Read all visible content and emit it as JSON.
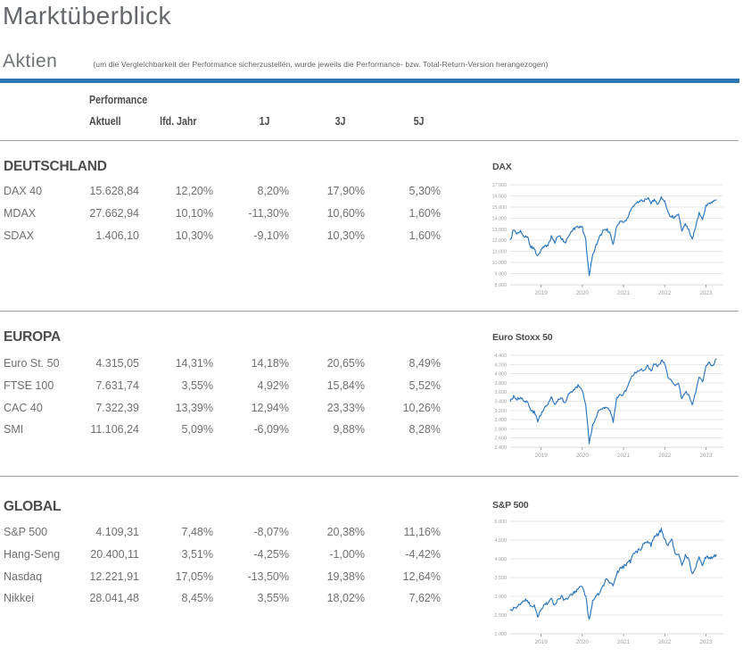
{
  "page": {
    "title": "Marktüberblick",
    "section": "Aktien",
    "note": "(um die Vergleichbarkeit der Performance sicherzustellen, wurde jeweils die Performance- bzw. Total-Return-Version herangezogen)"
  },
  "table": {
    "group_header": "Performance",
    "columns": [
      "Aktuell",
      "lfd. Jahr",
      "1J",
      "3J",
      "5J"
    ],
    "sections": [
      {
        "title": "DEUTSCHLAND",
        "rows": [
          {
            "label": "DAX 40",
            "values": [
              "15.628,84",
              "12,20%",
              "8,20%",
              "17,90%",
              "5,30%"
            ]
          },
          {
            "label": "MDAX",
            "values": [
              "27.662,94",
              "10,10%",
              "-11,30%",
              "10,60%",
              "1,60%"
            ]
          },
          {
            "label": "SDAX",
            "values": [
              "1.406,10",
              "10,30%",
              "-9,10%",
              "10,30%",
              "1,60%"
            ]
          }
        ]
      },
      {
        "title": "EUROPA",
        "rows": [
          {
            "label": "Euro St. 50",
            "values": [
              "4.315,05",
              "14,31%",
              "14,18%",
              "20,65%",
              "8,49%"
            ]
          },
          {
            "label": "FTSE 100",
            "values": [
              "7.631,74",
              "3,55%",
              "4,92%",
              "15,84%",
              "5,52%"
            ]
          },
          {
            "label": "CAC 40",
            "values": [
              "7.322,39",
              "13,39%",
              "12,94%",
              "23,33%",
              "10,26%"
            ]
          },
          {
            "label": "SMI",
            "values": [
              "11.106,24",
              "5,09%",
              "-6,09%",
              "9,88%",
              "8,28%"
            ]
          }
        ]
      },
      {
        "title": "GLOBAL",
        "rows": [
          {
            "label": "S&P 500",
            "values": [
              "4.109,31",
              "7,48%",
              "-8,07%",
              "20,38%",
              "11,16%"
            ]
          },
          {
            "label": "Hang-Seng",
            "values": [
              "20.400,11",
              "3,51%",
              "-4,25%",
              "-1,00%",
              "-4,42%"
            ]
          },
          {
            "label": "Nasdaq",
            "values": [
              "12.221,91",
              "17,05%",
              "-13,50%",
              "19,38%",
              "12,64%"
            ]
          },
          {
            "label": "Nikkei",
            "values": [
              "28.041,48",
              "8,45%",
              "3,55%",
              "18,02%",
              "7,62%"
            ]
          }
        ]
      }
    ]
  },
  "colors": {
    "accent_bar": "#2e75b6",
    "line": "#2a75bd",
    "grid": "#e7e7e7",
    "grid_bottom": "#d8d8d8",
    "axis_label": "#9e9ea0",
    "tick": "#8f8f8f",
    "heading_text": "#4b4c4e",
    "body_text": "#6d6f71"
  },
  "chart_data": [
    {
      "type": "line",
      "title": "DAX",
      "x_start_year": 2018.25,
      "x_step_months": 1,
      "x_axis_range": [
        2018.25,
        2023.38
      ],
      "x_ticks": [
        2019,
        2020,
        2021,
        2022,
        2023
      ],
      "y_min": 8000,
      "y_max": 17000,
      "y_step": 1000,
      "series": [
        {
          "name": "DAX",
          "values": [
            12100,
            12900,
            12650,
            12800,
            12400,
            12250,
            11450,
            11300,
            10500,
            11100,
            11450,
            11550,
            12300,
            11850,
            12350,
            12200,
            11700,
            12350,
            12850,
            13200,
            13250,
            13200,
            12000,
            8800,
            10700,
            11500,
            12350,
            12800,
            12950,
            12850,
            11600,
            13300,
            13700,
            13650,
            13900,
            14700,
            15150,
            15400,
            15600,
            15550,
            15900,
            15300,
            15650,
            15200,
            15850,
            15450,
            14500,
            14100,
            14050,
            14350,
            13000,
            13450,
            12950,
            12100,
            13200,
            14400,
            13950,
            15100,
            15350,
            15450,
            15630
          ]
        }
      ]
    },
    {
      "type": "line",
      "title": "Euro Stoxx 50",
      "x_start_year": 2018.25,
      "x_step_months": 1,
      "x_axis_range": [
        2018.25,
        2023.38
      ],
      "x_ticks": [
        2019,
        2020,
        2021,
        2022,
        2023
      ],
      "y_min": 2400,
      "y_max": 4400,
      "y_step": 200,
      "series": [
        {
          "name": "Euro Stoxx 50",
          "values": [
            3400,
            3520,
            3450,
            3480,
            3390,
            3400,
            3200,
            3170,
            2980,
            3120,
            3270,
            3350,
            3500,
            3320,
            3450,
            3470,
            3360,
            3550,
            3600,
            3700,
            3740,
            3650,
            3330,
            2500,
            2880,
            3040,
            3230,
            3250,
            3300,
            3200,
            2960,
            3470,
            3550,
            3560,
            3670,
            3900,
            3990,
            4040,
            4080,
            4060,
            4180,
            4050,
            4230,
            4150,
            4280,
            4220,
            3900,
            3850,
            3750,
            3790,
            3450,
            3600,
            3520,
            3320,
            3600,
            3950,
            3800,
            4160,
            4240,
            4150,
            4315
          ]
        }
      ]
    },
    {
      "type": "line",
      "title": "S&P 500",
      "x_start_year": 2018.25,
      "x_step_months": 1,
      "x_axis_range": [
        2018.25,
        2023.38
      ],
      "x_ticks": [
        2019,
        2020,
        2021,
        2022,
        2023
      ],
      "y_min": 2000,
      "y_max": 5000,
      "y_step": 500,
      "series": [
        {
          "name": "S&P 500",
          "values": [
            2640,
            2700,
            2720,
            2800,
            2880,
            2910,
            2720,
            2740,
            2450,
            2670,
            2780,
            2830,
            2930,
            2780,
            2940,
            2990,
            2900,
            2980,
            3030,
            3130,
            3230,
            3270,
            3000,
            2350,
            2850,
            3000,
            3100,
            3250,
            3480,
            3350,
            3300,
            3620,
            3730,
            3780,
            3880,
            3950,
            4170,
            4190,
            4280,
            4390,
            4510,
            4350,
            4600,
            4650,
            4770,
            4550,
            4350,
            4540,
            4150,
            4120,
            3800,
            4100,
            4000,
            3600,
            3800,
            4050,
            3850,
            4070,
            3990,
            4050,
            4109
          ]
        }
      ]
    }
  ]
}
